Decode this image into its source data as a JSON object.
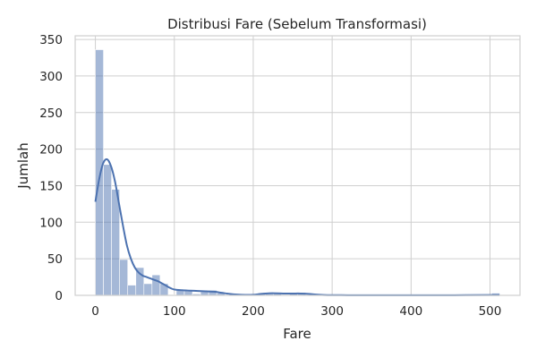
{
  "chart_data": {
    "type": "bar",
    "title": "Distribusi Fare (Sebelum Transformasi)",
    "xlabel": "Fare",
    "ylabel": "Jumlah",
    "xlim": [
      -25.6,
      538.0
    ],
    "ylim": [
      0,
      355
    ],
    "xticks": [
      0,
      100,
      200,
      300,
      400,
      500
    ],
    "yticks": [
      0,
      50,
      100,
      150,
      200,
      250,
      300,
      350
    ],
    "grid": true,
    "bin_width": 10.25,
    "bins": [
      {
        "x0": 0.0,
        "x1": 10.25,
        "count": 336
      },
      {
        "x0": 10.25,
        "x1": 20.5,
        "count": 179
      },
      {
        "x0": 20.5,
        "x1": 30.75,
        "count": 145
      },
      {
        "x0": 30.75,
        "x1": 41.0,
        "count": 49
      },
      {
        "x0": 41.0,
        "x1": 51.25,
        "count": 14
      },
      {
        "x0": 51.25,
        "x1": 61.5,
        "count": 38
      },
      {
        "x0": 61.5,
        "x1": 71.75,
        "count": 16
      },
      {
        "x0": 71.75,
        "x1": 82.0,
        "count": 28
      },
      {
        "x0": 82.0,
        "x1": 92.25,
        "count": 16
      },
      {
        "x0": 92.25,
        "x1": 102.5,
        "count": 1
      },
      {
        "x0": 102.5,
        "x1": 112.75,
        "count": 7
      },
      {
        "x0": 112.75,
        "x1": 123.0,
        "count": 6
      },
      {
        "x0": 123.0,
        "x1": 133.25,
        "count": 2
      },
      {
        "x0": 133.25,
        "x1": 143.5,
        "count": 5
      },
      {
        "x0": 143.5,
        "x1": 153.75,
        "count": 7
      },
      {
        "x0": 153.75,
        "x1": 164.0,
        "count": 3
      },
      {
        "x0": 164.0,
        "x1": 174.25,
        "count": 1
      },
      {
        "x0": 205.0,
        "x1": 215.25,
        "count": 2
      },
      {
        "x0": 215.25,
        "x1": 225.5,
        "count": 2
      },
      {
        "x0": 225.5,
        "x1": 235.75,
        "count": 2
      },
      {
        "x0": 246.0,
        "x1": 256.25,
        "count": 2
      },
      {
        "x0": 256.25,
        "x1": 266.5,
        "count": 4
      },
      {
        "x0": 502.25,
        "x1": 512.5,
        "count": 3
      }
    ],
    "kde": {
      "x": [
        0,
        5,
        10,
        15,
        20,
        25,
        30,
        35,
        40,
        45,
        50,
        55,
        60,
        65,
        70,
        75,
        80,
        85,
        90,
        95,
        100,
        110,
        120,
        130,
        140,
        150,
        160,
        170,
        180,
        190,
        200,
        210,
        220,
        230,
        240,
        250,
        260,
        270,
        280,
        290,
        300,
        320,
        350,
        400,
        450,
        500,
        512
      ],
      "y": [
        128,
        160,
        181,
        186,
        176,
        155,
        125,
        95,
        68,
        50,
        38,
        31,
        27,
        25,
        23,
        21,
        19,
        16,
        13,
        10,
        8,
        7,
        6.5,
        6,
        5.5,
        5,
        3.5,
        2,
        1,
        0.6,
        0.8,
        2,
        2.8,
        2.8,
        2.5,
        2.5,
        2.5,
        2,
        1,
        0.5,
        0.3,
        0.2,
        0.1,
        0.1,
        0.2,
        0.4,
        0.5
      ]
    }
  }
}
